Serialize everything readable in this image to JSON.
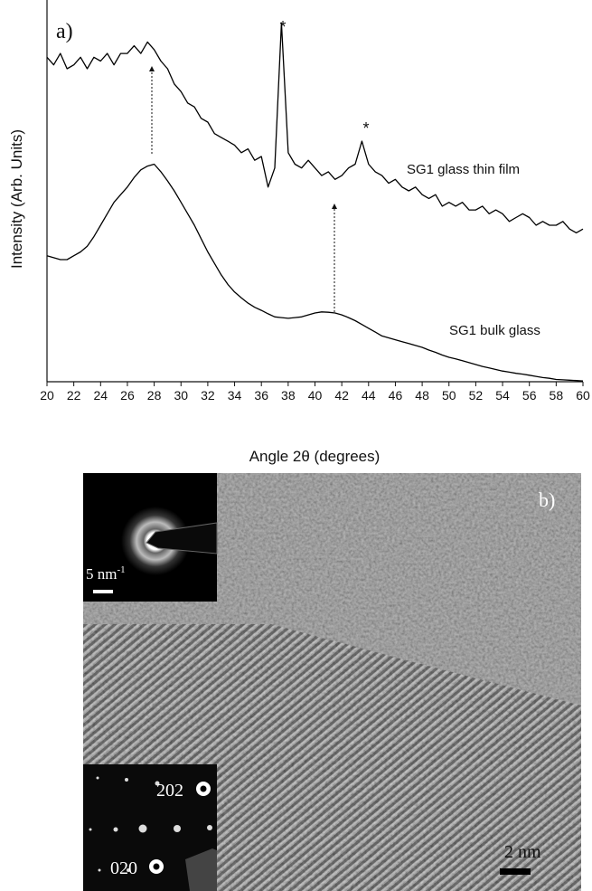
{
  "chart_data": {
    "type": "line",
    "panel_label": "a)",
    "xlabel": "Angle 2θ (degrees)",
    "ylabel": "Intensity (Arb. Units)",
    "xlim": [
      20,
      60
    ],
    "xticks": [
      20,
      22,
      24,
      26,
      28,
      30,
      32,
      34,
      36,
      38,
      40,
      42,
      44,
      46,
      48,
      50,
      52,
      54,
      56,
      58,
      60
    ],
    "ylim": [
      0,
      100
    ],
    "x": [
      20,
      20.5,
      21,
      21.5,
      22,
      22.5,
      23,
      23.5,
      24,
      24.5,
      25,
      25.5,
      26,
      26.5,
      27,
      27.5,
      28,
      28.5,
      29,
      29.5,
      30,
      30.5,
      31,
      31.5,
      32,
      32.5,
      33,
      33.5,
      34,
      34.5,
      35,
      35.5,
      36,
      36.5,
      37,
      37.5,
      38,
      38.5,
      39,
      39.5,
      40,
      40.5,
      41,
      41.5,
      42,
      42.5,
      43,
      43.5,
      44,
      44.5,
      45,
      45.5,
      46,
      46.5,
      47,
      47.5,
      48,
      48.5,
      49,
      49.5,
      50,
      50.5,
      51,
      51.5,
      52,
      52.5,
      53,
      53.5,
      54,
      54.5,
      55,
      55.5,
      56,
      56.5,
      57,
      57.5,
      58,
      58.5,
      59,
      59.5,
      60
    ],
    "series": [
      {
        "name": "SG1 glass thin film",
        "color": "#000000",
        "values": [
          85,
          83,
          86,
          82,
          83,
          85,
          82,
          85,
          84,
          86,
          83,
          86,
          86,
          88,
          86,
          89,
          87,
          84,
          82,
          78,
          76,
          73,
          72,
          69,
          68,
          65,
          64,
          63,
          62,
          60,
          61,
          58,
          59,
          51,
          56,
          94,
          60,
          57,
          56,
          58,
          56,
          54,
          55,
          53,
          54,
          56,
          57,
          63,
          57,
          55,
          54,
          52,
          53,
          51,
          50,
          51,
          49,
          48,
          49,
          46,
          47,
          46,
          47,
          45,
          45,
          46,
          44,
          45,
          44,
          42,
          43,
          44,
          43,
          41,
          42,
          41,
          41,
          42,
          40,
          39,
          40
        ]
      },
      {
        "name": "SG1 bulk glass",
        "color": "#000000",
        "values": [
          33,
          32.5,
          32,
          32,
          33,
          34,
          35.5,
          38,
          41,
          44,
          47,
          49,
          51,
          53.5,
          55.5,
          56.5,
          57,
          55,
          52.6,
          50,
          47,
          44,
          41,
          37.5,
          34,
          31,
          28,
          25.5,
          23.5,
          22,
          20.6,
          19.5,
          18.7,
          17.8,
          17,
          16.8,
          16.6,
          16.8,
          17,
          17.5,
          18,
          18.3,
          18.2,
          18,
          17.5,
          16.8,
          16,
          15,
          14,
          13,
          12,
          11.5,
          11,
          10.5,
          10,
          9.5,
          9,
          8.3,
          7.7,
          7,
          6.4,
          6,
          5.5,
          5,
          4.5,
          4,
          3.6,
          3.2,
          2.8,
          2.5,
          2.2,
          2,
          1.7,
          1.4,
          1.1,
          0.9,
          0.6,
          0.5,
          0.4,
          0.3,
          0.2
        ]
      }
    ],
    "annotations": [
      "*",
      "*"
    ]
  },
  "micrograph": {
    "panel_label": "b)",
    "top_inset": {
      "scale_label": "5 nm",
      "scale_unit_power": "-1"
    },
    "bottom_inset": {
      "spots": [
        "202",
        "020"
      ]
    },
    "scale_label": "2 nm"
  }
}
